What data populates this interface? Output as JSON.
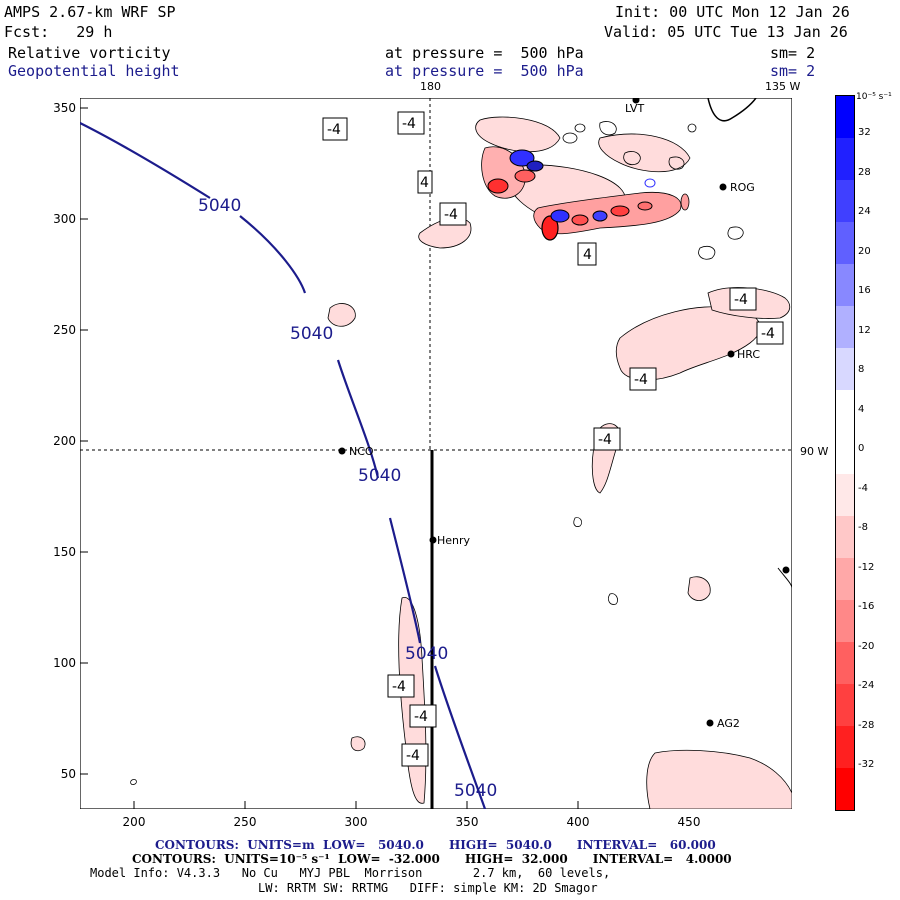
{
  "header": {
    "model": "AMPS 2.67-km WRF SP",
    "init": "Init: 00 UTC Mon 12 Jan 26",
    "forecast": "Fcst:   29 h",
    "valid": "Valid: 05 UTC Tue 13 Jan 26",
    "field1_name": "Relative vorticity",
    "field1_level": "at pressure =  500 hPa",
    "field1_sm": "sm= 2",
    "field2_name": "Geopotential height",
    "field2_level": "at pressure =  500 hPa",
    "field2_sm": "sm= 2"
  },
  "map": {
    "lon_labels": {
      "top_180": "180",
      "top_135w": "135 W",
      "right_90w": "90 W"
    },
    "y_ticks": [
      "350",
      "300",
      "250",
      "200",
      "150",
      "100",
      "50"
    ],
    "x_ticks": [
      "200",
      "250",
      "300",
      "350",
      "400",
      "450"
    ],
    "stations": [
      "LVT",
      "ROG",
      "HRC",
      "NCO",
      "Henry",
      "AG2"
    ],
    "height_labels": [
      "5040",
      "5040",
      "5040",
      "5040",
      "5040"
    ],
    "vort_labels": [
      "-4",
      "-4",
      "4",
      "-4",
      "4",
      "-4",
      "-4",
      "-4",
      "-4",
      "-4",
      "-4",
      "-4"
    ],
    "colors": {
      "height_contour": "#1c1c8c",
      "vort_line": "#000000"
    }
  },
  "colorbar": {
    "unit": "10⁻⁵ s⁻¹",
    "labels": [
      "32",
      "28",
      "24",
      "20",
      "16",
      "12",
      "8",
      "4",
      "0",
      "-4",
      "-8",
      "-12",
      "-16",
      "-20",
      "-24",
      "-28",
      "-32"
    ],
    "colors": [
      "#0000ff",
      "#2020ff",
      "#4040ff",
      "#6060ff",
      "#8888ff",
      "#b0b0ff",
      "#d8d8ff",
      "#ffffff",
      "#ffffff",
      "#ffe8e8",
      "#ffc8c8",
      "#ffa8a8",
      "#ff8888",
      "#ff6060",
      "#ff4040",
      "#ff2020",
      "#ff0000"
    ]
  },
  "footer": {
    "contours1": "CONTOURS:  UNITS=m  LOW=   5040.0      HIGH=  5040.0      INTERVAL=   60.000",
    "contours2": "CONTOURS:  UNITS=10⁻⁵ s⁻¹  LOW=  -32.000      HIGH=  32.000      INTERVAL=   4.0000",
    "model_info": "Model Info: V4.3.3   No Cu   MYJ PBL  Morrison       2.7 km,  60 levels,",
    "model_info2": "LW: RRTM SW: RRTMG   DIFF: simple KM: 2D Smagor"
  }
}
